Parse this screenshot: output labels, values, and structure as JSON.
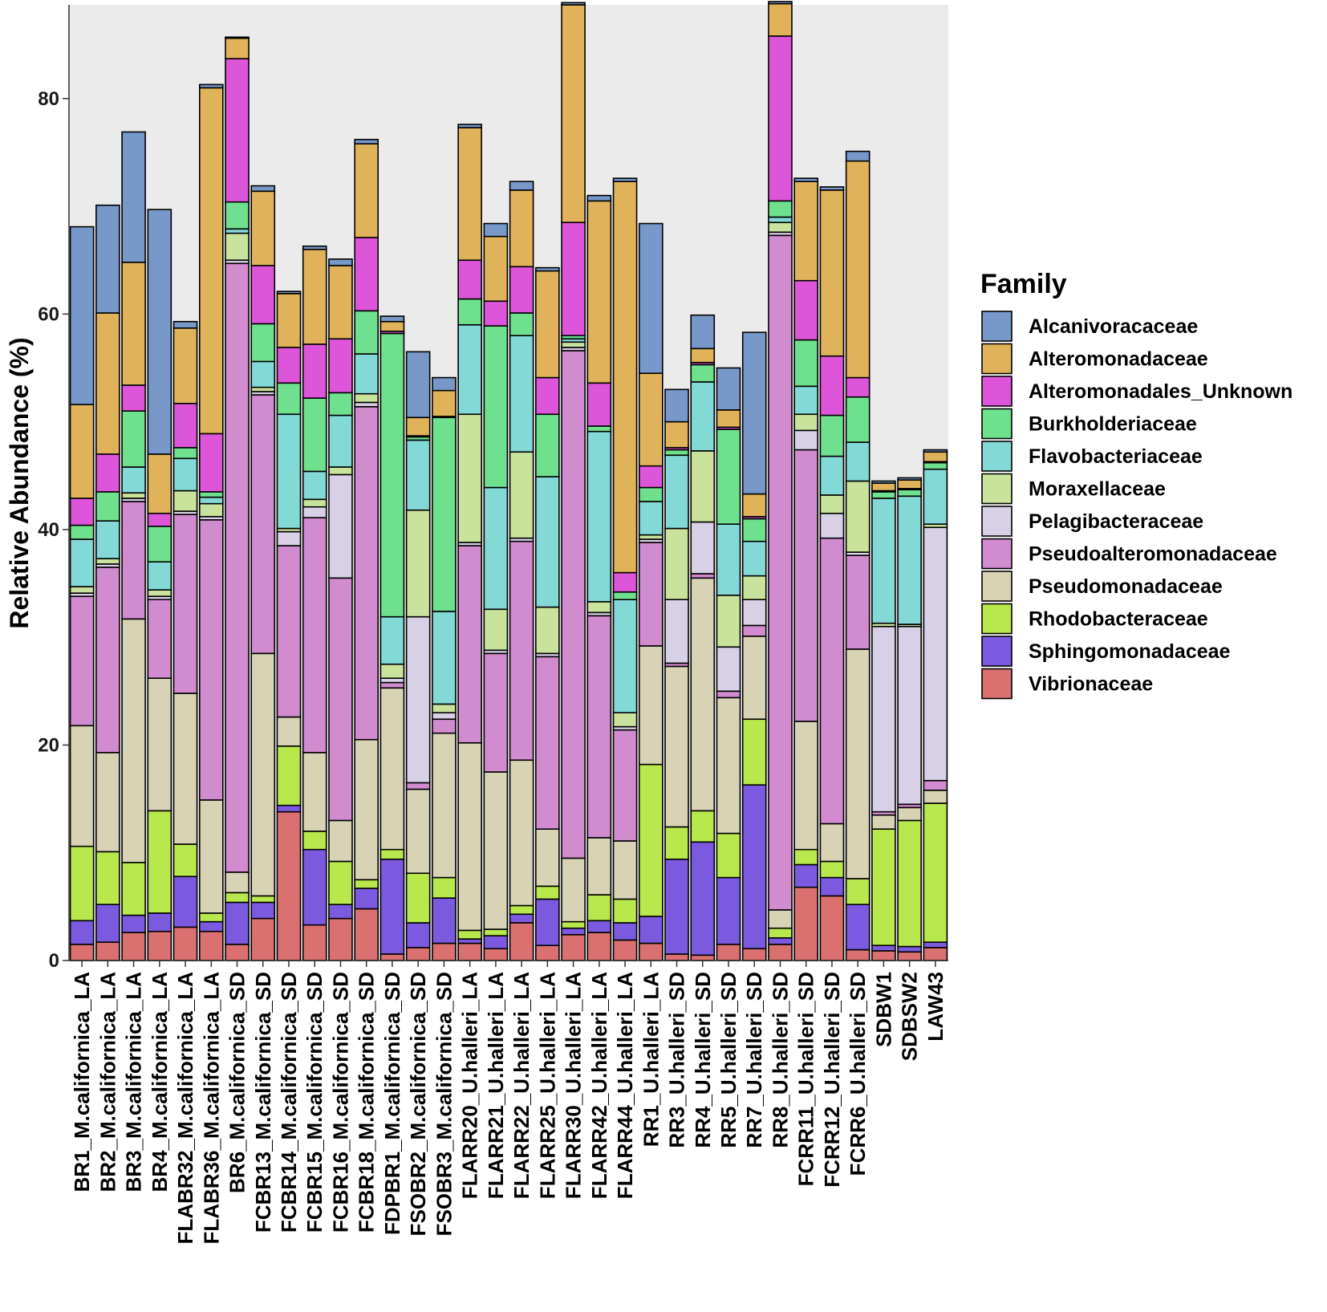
{
  "chart_data": {
    "type": "stacked-bar",
    "title": "",
    "xlabel": "",
    "ylabel": "Relative Abundance (%)",
    "ylim": [
      0,
      88.7
    ],
    "yticks": [
      0,
      20,
      40,
      60,
      80
    ],
    "grid": false,
    "legend_title": "Family",
    "legend_position": "right",
    "categories": [
      "BR1_M.californica_LA",
      "BR2_M.californica_LA",
      "BR3_M.californica_LA",
      "BR4_M.californica_LA",
      "FLABR32_M.californica_LA",
      "FLABR36_M.californica_LA",
      "BR6_M.californica_SD",
      "FCBR13_M.californica_SD",
      "FCBR14_M.californica_SD",
      "FCBR15_M.californica_SD",
      "FCBR16_M.californica_SD",
      "FCBR18_M.californica_SD",
      "FDPBR1_M.californica_SD",
      "FSOBR2_M.californica_SD",
      "FSOBR3_M.californica_SD",
      "FLARR20_U.halleri_LA",
      "FLARR21_U.halleri_LA",
      "FLARR22_U.halleri_LA",
      "FLARR25_U.halleri_LA",
      "FLARR30_U.halleri_LA",
      "FLARR42_U.halleri_LA",
      "FLARR44_U.halleri_LA",
      "RR1_U.halleri_LA",
      "RR3_U.halleri_SD",
      "RR4_U.halleri_SD",
      "RR5_U.halleri_SD",
      "RR7_U.halleri_SD",
      "RR8_U.halleri_SD",
      "FCRR11_U.halleri_SD",
      "FCRR12_U.halleri_SD",
      "FCRR6_U.halleri_SD",
      "SDBW1",
      "SDBSW2",
      "LAW43"
    ],
    "series": [
      {
        "name": "Vibrionaceae",
        "color": "#DB7070",
        "values": [
          1.5,
          1.7,
          2.6,
          2.7,
          3.1,
          2.7,
          1.5,
          3.9,
          13.8,
          3.3,
          3.9,
          4.8,
          0.6,
          1.2,
          1.6,
          1.6,
          1.1,
          3.5,
          1.4,
          2.4,
          2.6,
          1.9,
          1.6,
          0.6,
          0.5,
          1.5,
          1.1,
          1.5,
          6.8,
          6.0,
          1.0,
          0.9,
          0.8,
          1.2
        ]
      },
      {
        "name": "Sphingomonadaceae",
        "color": "#7B5AE0",
        "values": [
          2.2,
          3.5,
          1.6,
          1.7,
          4.7,
          0.9,
          3.9,
          1.5,
          0.6,
          7.0,
          1.3,
          1.9,
          8.8,
          2.3,
          4.2,
          0.4,
          1.2,
          0.8,
          4.3,
          0.6,
          1.1,
          1.6,
          2.5,
          8.8,
          10.5,
          6.2,
          15.2,
          0.6,
          2.1,
          1.7,
          4.2,
          0.5,
          0.5,
          0.5
        ]
      },
      {
        "name": "Rhodobacteraceae",
        "color": "#B9E84C",
        "values": [
          6.9,
          4.9,
          4.9,
          9.5,
          3.0,
          0.8,
          0.9,
          0.6,
          5.5,
          1.7,
          4.0,
          0.8,
          0.9,
          4.6,
          1.9,
          0.8,
          0.6,
          0.8,
          1.2,
          0.6,
          2.4,
          2.2,
          14.1,
          3.0,
          2.9,
          4.1,
          6.1,
          0.9,
          1.4,
          1.5,
          2.4,
          10.8,
          11.7,
          12.9
        ]
      },
      {
        "name": "Pseudomonadaceae",
        "color": "#D9D3B6",
        "values": [
          11.2,
          9.2,
          22.6,
          12.3,
          14.0,
          10.5,
          1.9,
          22.5,
          2.7,
          7.3,
          3.8,
          13.0,
          15.0,
          7.8,
          13.4,
          17.4,
          14.6,
          13.5,
          5.3,
          5.9,
          5.3,
          5.4,
          11.0,
          14.9,
          21.6,
          12.6,
          7.7,
          1.7,
          11.9,
          3.5,
          21.3,
          1.3,
          1.2,
          1.2
        ]
      },
      {
        "name": "Pseudoalteromonadaceae",
        "color": "#D18BCF",
        "values": [
          12.0,
          17.2,
          10.9,
          7.3,
          16.6,
          26.0,
          56.5,
          24.0,
          15.9,
          21.8,
          22.5,
          30.9,
          0.5,
          0.6,
          1.3,
          18.3,
          11.0,
          20.3,
          16.0,
          47.1,
          20.6,
          10.3,
          9.6,
          0.3,
          0.4,
          0.6,
          1.0,
          62.6,
          25.2,
          26.5,
          8.7,
          0.3,
          0.3,
          0.9
        ]
      },
      {
        "name": "Pelagibacteraceae",
        "color": "#D8D0E6",
        "values": [
          0.3,
          0.3,
          0.3,
          0.3,
          0.3,
          0.3,
          0.3,
          0.3,
          1.3,
          1.0,
          9.6,
          0.4,
          0.4,
          15.4,
          0.6,
          0.3,
          0.3,
          0.3,
          0.3,
          0.3,
          0.3,
          0.3,
          0.3,
          5.9,
          4.8,
          4.1,
          2.4,
          0.3,
          1.8,
          2.3,
          0.3,
          17.2,
          16.5,
          23.5
        ]
      },
      {
        "name": "Moraxellaceae",
        "color": "#C9E39C",
        "values": [
          0.6,
          0.5,
          0.5,
          0.6,
          1.9,
          1.2,
          2.5,
          0.4,
          0.3,
          0.7,
          0.7,
          0.8,
          1.3,
          9.9,
          0.8,
          11.9,
          3.8,
          8.0,
          4.3,
          0.5,
          1.0,
          1.3,
          0.4,
          6.6,
          6.6,
          4.8,
          2.2,
          0.9,
          1.5,
          1.7,
          6.6,
          0.3,
          0.2,
          0.3
        ]
      },
      {
        "name": "Flavobacteriaceae",
        "color": "#82D9D6",
        "values": [
          4.4,
          3.5,
          2.4,
          2.6,
          3.0,
          0.6,
          0.4,
          2.4,
          10.6,
          2.6,
          4.8,
          3.7,
          4.4,
          6.5,
          8.6,
          8.3,
          11.3,
          10.8,
          12.1,
          0.3,
          15.8,
          10.5,
          3.1,
          6.8,
          6.4,
          6.6,
          3.2,
          0.5,
          2.6,
          3.6,
          3.6,
          11.6,
          11.9,
          5.1
        ]
      },
      {
        "name": "Burkholderiaceae",
        "color": "#6EE08E",
        "values": [
          1.3,
          2.7,
          5.2,
          3.3,
          1.0,
          0.5,
          2.5,
          3.5,
          2.9,
          6.8,
          2.1,
          4.0,
          26.3,
          0.3,
          18.0,
          2.4,
          15.0,
          2.1,
          5.8,
          0.3,
          0.5,
          0.7,
          1.3,
          0.5,
          1.6,
          8.8,
          2.1,
          1.5,
          4.3,
          3.8,
          4.2,
          0.6,
          0.6,
          0.6
        ]
      },
      {
        "name": "Alteromonadales_Unknown",
        "color": "#DD55D8",
        "values": [
          2.5,
          3.5,
          2.4,
          1.2,
          4.1,
          5.4,
          13.3,
          5.4,
          3.3,
          5.0,
          5.0,
          6.8,
          0.2,
          0.1,
          0.1,
          3.6,
          2.3,
          4.3,
          3.4,
          10.5,
          4.0,
          1.8,
          2.0,
          0.2,
          0.2,
          0.2,
          0.2,
          15.3,
          5.5,
          5.5,
          1.8,
          0.1,
          0.1,
          0.1
        ]
      },
      {
        "name": "Alteromonadaceae",
        "color": "#E0B35A",
        "values": [
          8.7,
          13.1,
          11.4,
          5.5,
          7.0,
          32.1,
          1.9,
          6.9,
          5.0,
          8.8,
          6.8,
          8.7,
          0.9,
          1.7,
          2.4,
          12.3,
          6.0,
          7.1,
          9.9,
          20.2,
          16.9,
          36.3,
          8.6,
          2.4,
          1.3,
          1.6,
          2.1,
          3.0,
          9.2,
          15.4,
          20.1,
          0.7,
          0.8,
          0.9
        ]
      },
      {
        "name": "Alcanivoracaceae",
        "color": "#7798C8",
        "values": [
          16.5,
          10.0,
          12.1,
          22.7,
          0.6,
          0.3,
          0.1,
          0.5,
          0.2,
          0.3,
          0.6,
          0.4,
          0.5,
          6.1,
          1.2,
          0.3,
          1.2,
          0.8,
          0.3,
          0.2,
          0.5,
          0.3,
          13.9,
          3.0,
          3.1,
          3.9,
          15.0,
          0.2,
          0.3,
          0.3,
          0.9,
          0.2,
          0.2,
          0.2
        ]
      }
    ]
  }
}
